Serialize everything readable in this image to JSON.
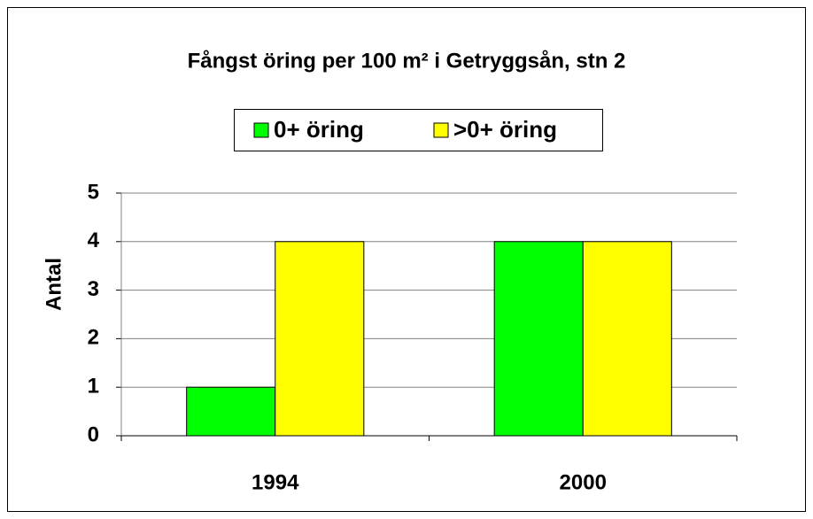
{
  "chart_data": {
    "type": "bar",
    "title": "Fångst öring per 100 m² i Getryggsån, stn 2",
    "y_label": "Antal",
    "categories": [
      "1994",
      "2000"
    ],
    "series": [
      {
        "name": "0+ öring",
        "color": "#00ff00",
        "values": [
          1,
          4
        ]
      },
      {
        "name": ">0+ öring",
        "color": "#ffff00",
        "values": [
          4,
          4
        ]
      }
    ],
    "ylim": [
      0,
      5
    ],
    "yticks": [
      0,
      1,
      2,
      3,
      4,
      5
    ],
    "grid": true,
    "legend": "top"
  }
}
